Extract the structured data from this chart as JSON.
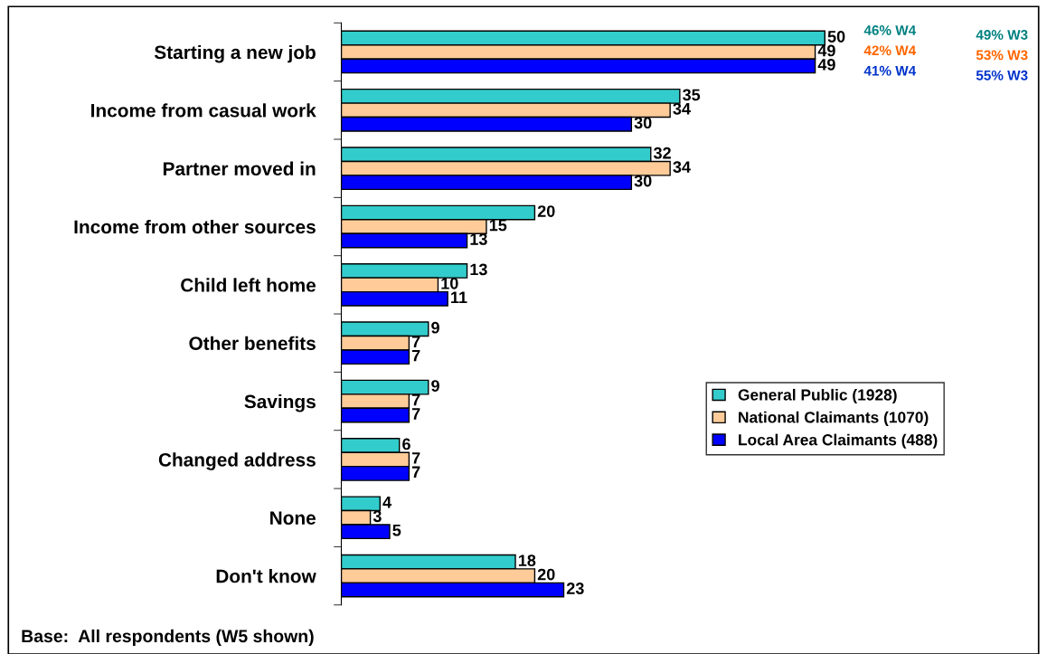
{
  "chart_data": {
    "type": "bar",
    "orientation": "horizontal",
    "categories": [
      "Starting a new job",
      "Income from casual work",
      "Partner moved in",
      "Income from other sources",
      "Child left home",
      "Other benefits",
      "Savings",
      "Changed address",
      "None",
      "Don't know"
    ],
    "series": [
      {
        "name": "General Public (1928)",
        "color": "#33cccc",
        "values": [
          50,
          35,
          32,
          20,
          13,
          9,
          9,
          6,
          4,
          18
        ]
      },
      {
        "name": "National Claimants (1070)",
        "color": "#ffcc99",
        "values": [
          49,
          34,
          34,
          15,
          10,
          7,
          7,
          7,
          3,
          20
        ]
      },
      {
        "name": "Local Area Claimants (488)",
        "color": "#0000ff",
        "values": [
          49,
          30,
          30,
          13,
          11,
          7,
          7,
          7,
          5,
          23
        ]
      }
    ],
    "xlim": [
      0,
      72
    ],
    "tick_labels": "y",
    "data_labels": true,
    "legend": "right",
    "grid": false,
    "annotations": [
      "46% W4",
      "42% W4",
      "41% W4",
      "49% W3",
      "53% W3",
      "55% W3",
      "Base:  All respondents (W5 shown)"
    ]
  }
}
